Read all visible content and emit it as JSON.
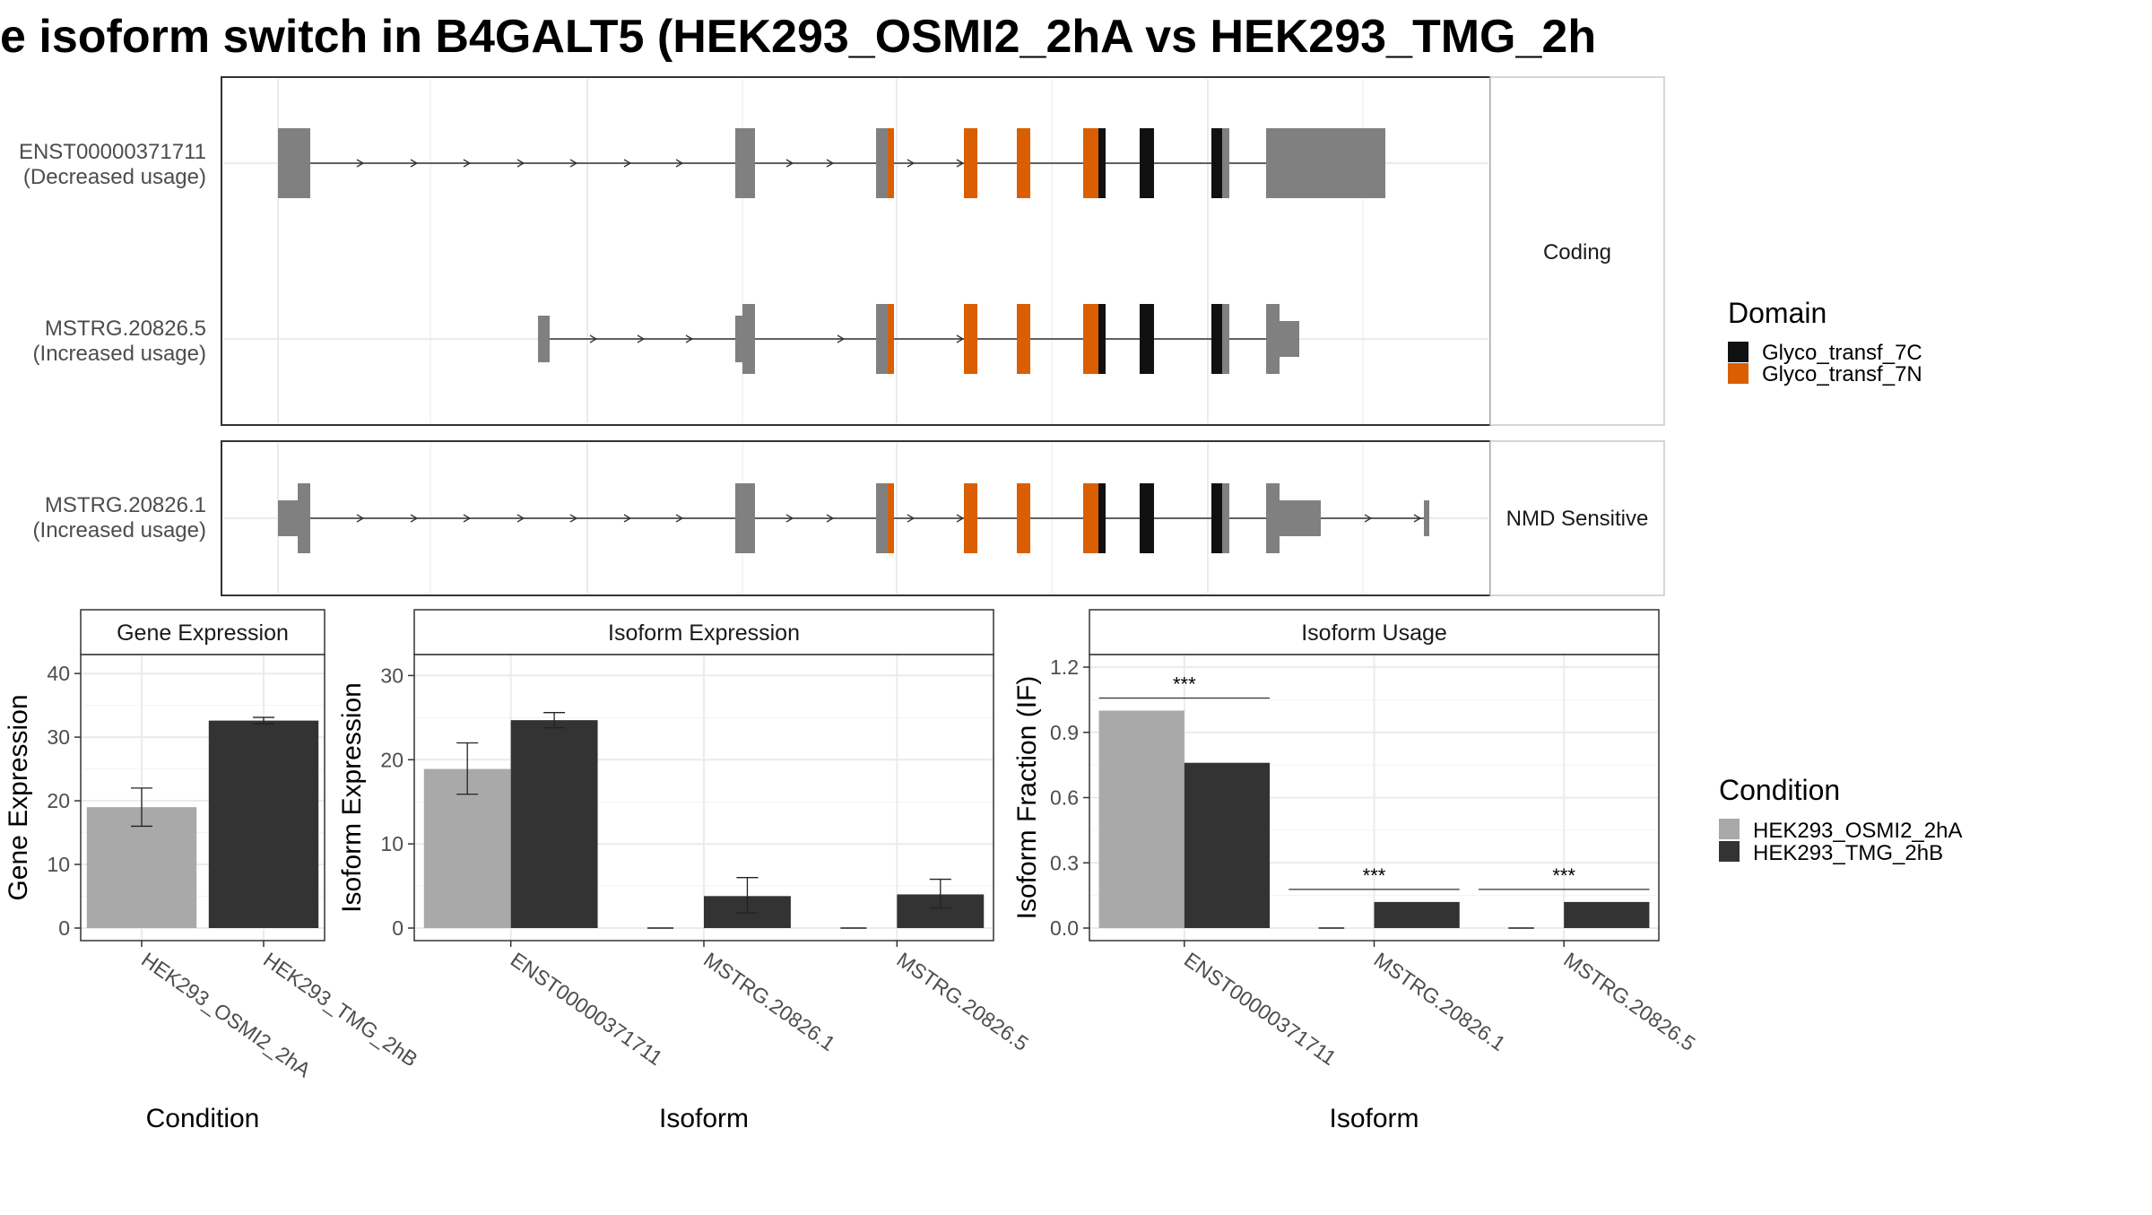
{
  "title": "e isoform switch in B4GALT5 (HEK293_OSMI2_2hA vs HEK293_TMG_2h",
  "structure": {
    "facets": [
      "Coding",
      "NMD Sensitive"
    ],
    "transcripts": [
      {
        "id": "ENST00000371711",
        "usage": "(Decreased usage)",
        "facet": "Coding"
      },
      {
        "id": "MSTRG.20826.5",
        "usage": "(Increased usage)",
        "facet": "Coding"
      },
      {
        "id": "MSTRG.20826.1",
        "usage": "(Increased usage)",
        "facet": "NMD Sensitive"
      }
    ]
  },
  "legend_domain": {
    "title": "Domain",
    "items": [
      {
        "label": "Glyco_transf_7C",
        "color": "#111111"
      },
      {
        "label": "Glyco_transf_7N",
        "color": "#D95F02"
      }
    ]
  },
  "legend_condition": {
    "title": "Condition",
    "items": [
      {
        "label": "HEK293_OSMI2_2hA",
        "color": "#A9A9A9"
      },
      {
        "label": "HEK293_TMG_2hB",
        "color": "#333333"
      }
    ]
  },
  "colors": {
    "exon": "#808080",
    "domain_7C": "#111111",
    "domain_7N": "#D95F02",
    "cond_a": "#A9A9A9",
    "cond_b": "#333333"
  },
  "significance": "***",
  "chart_data": [
    {
      "type": "bar",
      "title": "Gene Expression",
      "xlabel": "Condition",
      "ylabel": "Gene Expression",
      "ylim": [
        0,
        41
      ],
      "yticks": [
        0,
        10,
        20,
        30,
        40
      ],
      "categories": [
        "HEK293_OSMI2_2hA",
        "HEK293_TMG_2hB"
      ],
      "values": [
        19,
        32.6
      ],
      "error": [
        [
          16,
          22
        ],
        [
          32.1,
          33.1
        ]
      ]
    },
    {
      "type": "bar",
      "title": "Isoform Expression",
      "xlabel": "Isoform",
      "ylabel": "Isoform Expression",
      "ylim": [
        0,
        31
      ],
      "yticks": [
        0,
        10,
        20,
        30
      ],
      "categories": [
        "ENST00000371711",
        "MSTRG.20826.1",
        "MSTRG.20826.5"
      ],
      "series": [
        {
          "name": "HEK293_OSMI2_2hA",
          "values": [
            18.9,
            0,
            0
          ],
          "error": [
            [
              15.9,
              22
            ],
            [
              0,
              0
            ],
            [
              0,
              0
            ]
          ]
        },
        {
          "name": "HEK293_TMG_2hB",
          "values": [
            24.7,
            3.8,
            4.0
          ],
          "error": [
            [
              23.8,
              25.6
            ],
            [
              1.8,
              6.0
            ],
            [
              2.4,
              5.8
            ]
          ]
        }
      ]
    },
    {
      "type": "bar",
      "title": "Isoform Usage",
      "xlabel": "Isoform",
      "ylabel": "Isoform Fraction (IF)",
      "ylim": [
        0,
        1.2
      ],
      "yticks": [
        "0.0",
        "0.3",
        "0.6",
        "0.9",
        "1.2"
      ],
      "categories": [
        "ENST00000371711",
        "MSTRG.20826.1",
        "MSTRG.20826.5"
      ],
      "series": [
        {
          "name": "HEK293_OSMI2_2hA",
          "values": [
            1.0,
            0,
            0
          ]
        },
        {
          "name": "HEK293_TMG_2hB",
          "values": [
            0.76,
            0.12,
            0.12
          ]
        }
      ],
      "significance": [
        "***",
        "***",
        "***"
      ]
    }
  ]
}
